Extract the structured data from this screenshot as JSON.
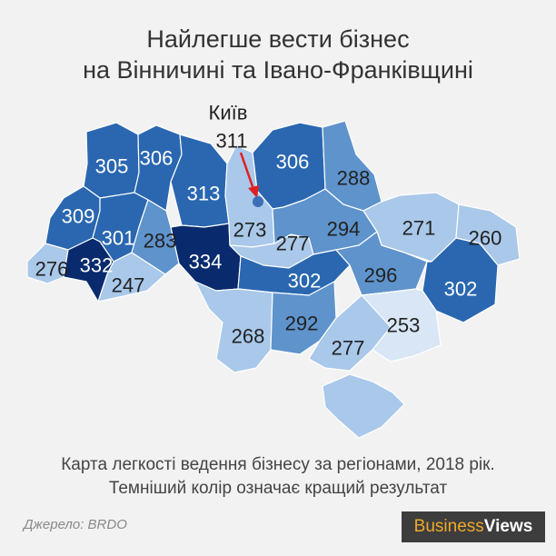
{
  "title": {
    "line1": "Найлегше вести бізнес",
    "line2": "на Вінничині та Івано-Франківщині"
  },
  "colors": {
    "darkest": "#0a2a6e",
    "dark": "#2a67b0",
    "medium": "#5e93cc",
    "light": "#a9c8ea",
    "lightest": "#d8e6f5",
    "kyiv_marker": "#3b6fb6",
    "arrow": "#e02020"
  },
  "kyiv": {
    "name": "Київ",
    "value": "311"
  },
  "regions": [
    {
      "id": "volyn",
      "value": "305",
      "level": "dark"
    },
    {
      "id": "rivne",
      "value": "306",
      "level": "dark"
    },
    {
      "id": "zhytomyr",
      "value": "313",
      "level": "dark"
    },
    {
      "id": "chernihiv",
      "value": "306",
      "level": "dark"
    },
    {
      "id": "sumy",
      "value": "288",
      "level": "medium"
    },
    {
      "id": "lviv",
      "value": "309",
      "level": "dark"
    },
    {
      "id": "ternopil",
      "value": "301",
      "level": "dark"
    },
    {
      "id": "khmelnytskyi",
      "value": "283",
      "level": "medium"
    },
    {
      "id": "vinnytsia",
      "value": "334",
      "level": "darkest"
    },
    {
      "id": "kyiv-oblast",
      "value": "273",
      "level": "light"
    },
    {
      "id": "cherkasy",
      "value": "277",
      "level": "light"
    },
    {
      "id": "poltava",
      "value": "294",
      "level": "medium"
    },
    {
      "id": "kharkiv",
      "value": "271",
      "level": "light"
    },
    {
      "id": "luhansk",
      "value": "260",
      "level": "light"
    },
    {
      "id": "zakarpattia",
      "value": "276",
      "level": "light"
    },
    {
      "id": "ivano-frankivsk",
      "value": "332",
      "level": "darkest"
    },
    {
      "id": "chernivtsi",
      "value": "247",
      "level": "light"
    },
    {
      "id": "kirovohrad",
      "value": "302",
      "level": "dark"
    },
    {
      "id": "dnipropetrovsk",
      "value": "296",
      "level": "medium"
    },
    {
      "id": "donetsk",
      "value": "302",
      "level": "dark"
    },
    {
      "id": "odesa",
      "value": "268",
      "level": "light"
    },
    {
      "id": "mykolaiv",
      "value": "292",
      "level": "medium"
    },
    {
      "id": "kherson",
      "value": "277",
      "level": "light"
    },
    {
      "id": "zaporizhzhia",
      "value": "253",
      "level": "lightest"
    },
    {
      "id": "crimea",
      "value": "",
      "level": "light"
    }
  ],
  "caption": {
    "line1": "Карта легкості ведення бізнесу за регіонами, 2018 рік.",
    "line2": "Темніший колір означає кращий результат"
  },
  "source": "Джерело: BRDO",
  "logo": {
    "part1": "Business",
    "part2": "Views"
  }
}
